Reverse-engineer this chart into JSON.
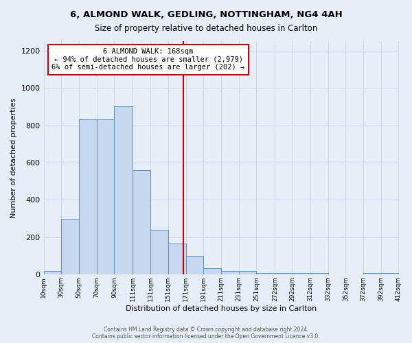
{
  "title": "6, ALMOND WALK, GEDLING, NOTTINGHAM, NG4 4AH",
  "subtitle": "Size of property relative to detached houses in Carlton",
  "xlabel": "Distribution of detached houses by size in Carlton",
  "ylabel": "Number of detached properties",
  "bar_color": "#c5d8ef",
  "bar_edge_color": "#5a8fc5",
  "property_size": 168,
  "bin_edges": [
    10,
    30,
    50,
    70,
    90,
    111,
    131,
    151,
    171,
    191,
    211,
    231,
    251,
    272,
    292,
    312,
    332,
    352,
    372,
    392,
    412
  ],
  "bar_heights": [
    20,
    300,
    830,
    830,
    900,
    560,
    240,
    165,
    100,
    35,
    20,
    20,
    10,
    10,
    10,
    10,
    0,
    0,
    10,
    10
  ],
  "bin_labels": [
    "10sqm",
    "30sqm",
    "50sqm",
    "70sqm",
    "90sqm",
    "111sqm",
    "131sqm",
    "151sqm",
    "171sqm",
    "191sqm",
    "211sqm",
    "231sqm",
    "251sqm",
    "272sqm",
    "292sqm",
    "312sqm",
    "332sqm",
    "352sqm",
    "372sqm",
    "392sqm",
    "412sqm"
  ],
  "annotation_title": "6 ALMOND WALK: 168sqm",
  "annotation_line1": "← 94% of detached houses are smaller (2,979)",
  "annotation_line2": "6% of semi-detached houses are larger (202) →",
  "ylim": [
    0,
    1250
  ],
  "yticks": [
    0,
    200,
    400,
    600,
    800,
    1000,
    1200
  ],
  "vline_color": "#cc0000",
  "background_color": "#e8eef8",
  "grid_color": "#d0d8e8",
  "footer_line1": "Contains HM Land Registry data © Crown copyright and database right 2024.",
  "footer_line2": "Contains public sector information licensed under the Open Government Licence v3.0."
}
